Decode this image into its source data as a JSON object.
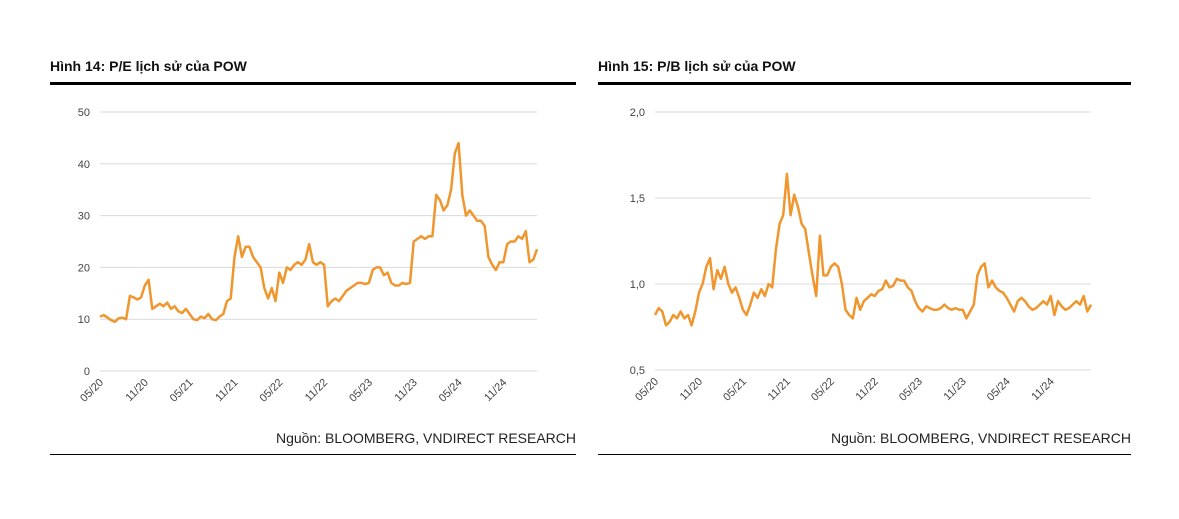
{
  "chart_data": [
    {
      "type": "line",
      "title": "Hình 14: P/E lịch sử của POW",
      "source": "Nguồn: BLOOMBERG, VNDIRECT RESEARCH",
      "color": "#f0962e",
      "grid": true,
      "ylim": [
        0,
        50
      ],
      "yticks": [
        0,
        10,
        20,
        30,
        40,
        50
      ],
      "categories": [
        "05/20",
        null,
        null,
        null,
        null,
        null,
        null,
        null,
        null,
        null,
        null,
        null,
        "11/20",
        null,
        null,
        null,
        null,
        null,
        null,
        null,
        null,
        null,
        null,
        null,
        "05/21",
        null,
        null,
        null,
        null,
        null,
        null,
        null,
        null,
        null,
        null,
        null,
        "11/21",
        null,
        null,
        null,
        null,
        null,
        null,
        null,
        null,
        null,
        null,
        null,
        "05/22",
        null,
        null,
        null,
        null,
        null,
        null,
        null,
        null,
        null,
        null,
        null,
        "11/22",
        null,
        null,
        null,
        null,
        null,
        null,
        null,
        null,
        null,
        null,
        null,
        "05/23",
        null,
        null,
        null,
        null,
        null,
        null,
        null,
        null,
        null,
        null,
        null,
        "11/23",
        null,
        null,
        null,
        null,
        null,
        null,
        null,
        null,
        null,
        null,
        null,
        "05/24",
        null,
        null,
        null,
        null,
        null,
        null,
        null,
        null,
        null,
        null,
        null,
        "11/24",
        null,
        null,
        null,
        null,
        null,
        null,
        null,
        null,
        null
      ],
      "values": [
        10.5,
        10.8,
        10.3,
        9.8,
        9.5,
        10.2,
        10.3,
        10.0,
        14.5,
        14.2,
        13.8,
        14.2,
        16.5,
        17.6,
        12.0,
        12.5,
        13.0,
        12.5,
        13.2,
        12.0,
        12.5,
        11.5,
        11.2,
        12.0,
        11.0,
        10.0,
        9.8,
        10.5,
        10.2,
        11.0,
        10.0,
        9.8,
        10.5,
        11.0,
        13.5,
        14.0,
        22,
        26,
        22,
        24,
        24,
        22,
        21,
        20,
        16,
        14,
        16,
        13.5,
        19,
        17,
        20,
        19.5,
        20.5,
        21,
        20.5,
        21.5,
        24.5,
        21,
        20.5,
        21,
        20.5,
        12.5,
        13.5,
        14,
        13.5,
        14.5,
        15.5,
        16,
        16.5,
        17,
        17,
        16.8,
        17,
        19.5,
        20,
        20,
        18.5,
        19,
        17,
        16.5,
        16.5,
        17,
        16.8,
        17,
        25,
        25.5,
        26,
        25.5,
        26,
        26,
        34,
        33,
        31,
        32,
        35,
        42,
        44,
        34,
        30,
        31,
        30,
        29,
        29,
        28,
        22,
        20.5,
        19.5,
        21,
        21,
        24.5,
        25,
        25,
        26,
        25.5,
        27,
        21,
        21.5,
        23.5
      ]
    },
    {
      "type": "line",
      "title": "Hình 15: P/B lịch sử của POW",
      "source": "Nguồn: BLOOMBERG, VNDIRECT RESEARCH",
      "color": "#f0962e",
      "grid": true,
      "ylim": [
        0.5,
        2.0
      ],
      "yticks": [
        {
          "value": 0.5,
          "label": "0,5"
        },
        {
          "value": 1.0,
          "label": "1,0"
        },
        {
          "value": 1.5,
          "label": "1,5"
        },
        {
          "value": 2.0,
          "label": "2,0"
        }
      ],
      "categories": [
        "05/20",
        null,
        null,
        null,
        null,
        null,
        null,
        null,
        null,
        null,
        null,
        null,
        "11/20",
        null,
        null,
        null,
        null,
        null,
        null,
        null,
        null,
        null,
        null,
        null,
        "05/21",
        null,
        null,
        null,
        null,
        null,
        null,
        null,
        null,
        null,
        null,
        null,
        "11/21",
        null,
        null,
        null,
        null,
        null,
        null,
        null,
        null,
        null,
        null,
        null,
        "05/22",
        null,
        null,
        null,
        null,
        null,
        null,
        null,
        null,
        null,
        null,
        null,
        "11/22",
        null,
        null,
        null,
        null,
        null,
        null,
        null,
        null,
        null,
        null,
        null,
        "05/23",
        null,
        null,
        null,
        null,
        null,
        null,
        null,
        null,
        null,
        null,
        null,
        "11/23",
        null,
        null,
        null,
        null,
        null,
        null,
        null,
        null,
        null,
        null,
        null,
        "05/24",
        null,
        null,
        null,
        null,
        null,
        null,
        null,
        null,
        null,
        null,
        null,
        "11/24",
        null,
        null,
        null,
        null,
        null,
        null,
        null,
        null,
        null,
        null,
        null
      ],
      "values": [
        0.82,
        0.86,
        0.84,
        0.76,
        0.78,
        0.82,
        0.8,
        0.84,
        0.8,
        0.82,
        0.76,
        0.84,
        0.95,
        1.0,
        1.1,
        1.15,
        0.97,
        1.08,
        1.03,
        1.1,
        1.0,
        0.95,
        0.98,
        0.92,
        0.85,
        0.82,
        0.88,
        0.95,
        0.92,
        0.97,
        0.93,
        1.0,
        0.98,
        1.2,
        1.35,
        1.4,
        1.64,
        1.4,
        1.52,
        1.45,
        1.35,
        1.32,
        1.18,
        1.05,
        0.93,
        1.28,
        1.05,
        1.05,
        1.1,
        1.12,
        1.1,
        1.0,
        0.85,
        0.82,
        0.8,
        0.92,
        0.85,
        0.9,
        0.92,
        0.94,
        0.93,
        0.96,
        0.97,
        1.02,
        0.98,
        0.99,
        1.03,
        1.02,
        1.02,
        0.98,
        0.96,
        0.9,
        0.86,
        0.84,
        0.87,
        0.86,
        0.85,
        0.85,
        0.86,
        0.88,
        0.86,
        0.85,
        0.86,
        0.85,
        0.85,
        0.8,
        0.84,
        0.88,
        1.05,
        1.1,
        1.12,
        0.98,
        1.02,
        0.98,
        0.96,
        0.95,
        0.92,
        0.88,
        0.84,
        0.9,
        0.92,
        0.9,
        0.87,
        0.85,
        0.86,
        0.88,
        0.9,
        0.88,
        0.93,
        0.82,
        0.9,
        0.87,
        0.85,
        0.86,
        0.88,
        0.9,
        0.88,
        0.93,
        0.84,
        0.88
      ]
    }
  ]
}
